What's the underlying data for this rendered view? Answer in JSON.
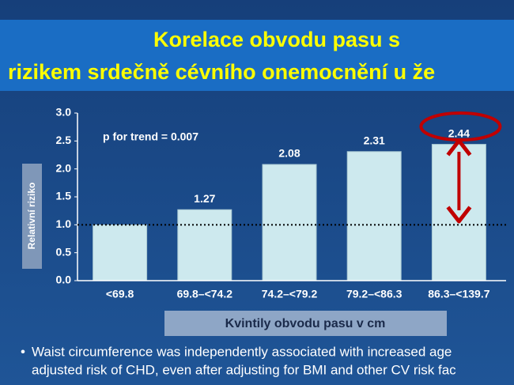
{
  "title_lines": [
    "Korelace obvodu pasu s",
    "rizikem srdečně cévního onemocnění u že"
  ],
  "chart_data": {
    "type": "bar",
    "categories": [
      "<69.8",
      "69.8–<74.2",
      "74.2–<79.2",
      "79.2–<86.3",
      "86.3–<139.7"
    ],
    "values": [
      1.0,
      1.27,
      2.08,
      2.31,
      2.44
    ],
    "value_labels": [
      null,
      "1.27",
      "2.08",
      "2.31",
      "2.44"
    ],
    "color": "#cde9ee",
    "ylim": [
      0,
      3
    ],
    "yticks": [
      {
        "value": 0,
        "label": "0.0"
      },
      0.5,
      {
        "value": 1,
        "label": "1.0"
      },
      1.5,
      {
        "value": 2,
        "label": "2.0"
      },
      2.5,
      {
        "value": 3,
        "label": "3.0"
      }
    ],
    "y_label": "Relativní riziko",
    "x_label": "Kvintily obvodu pasu v cm",
    "annotation": "p for trend = 0.007",
    "reference_line": 1.0
  },
  "bullets": [
    "Waist circumference was independently associated with increased age",
    "adjusted risk of CHD, even after adjusting for BMI and other CV risk fac"
  ]
}
